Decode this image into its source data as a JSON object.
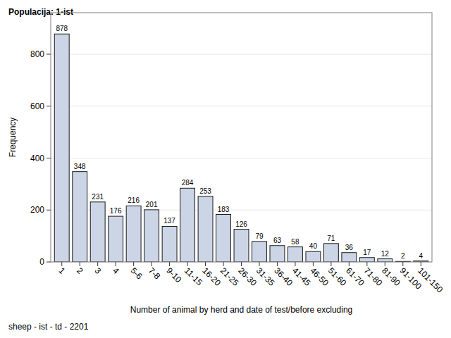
{
  "chart_data": {
    "type": "bar",
    "title": "Populacija: 1-ist",
    "x_label": "Number of animal by herd and date of test/before excluding",
    "y_label": "Frequency",
    "footnote": "sheep - ist - td - 2201",
    "categories": [
      "1",
      "2",
      "3",
      "4",
      "5-6",
      "7-8",
      "9-10",
      "11-15",
      "16-20",
      "21-25",
      "26-30",
      "31-35",
      "36-40",
      "41-45",
      "46-50",
      "51-60",
      "61-70",
      "71-80",
      "81-90",
      "91-100",
      "101-150"
    ],
    "values": [
      878,
      348,
      231,
      176,
      216,
      201,
      137,
      284,
      253,
      183,
      126,
      79,
      63,
      58,
      40,
      71,
      36,
      17,
      12,
      2,
      4
    ],
    "color": "#cbd5e6",
    "ylim": [
      0,
      960
    ],
    "yticks": [
      0,
      200,
      400,
      600,
      800
    ],
    "grid": true,
    "data_labels": true
  }
}
